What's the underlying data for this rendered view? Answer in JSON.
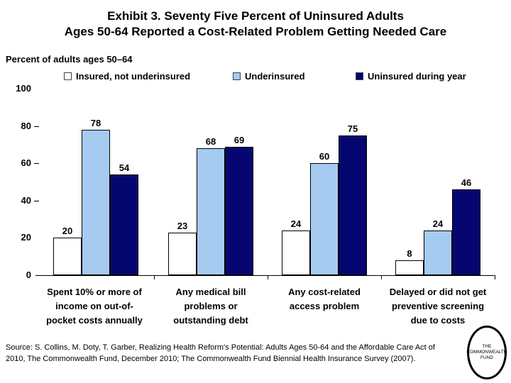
{
  "header": {
    "title_line1": "Exhibit 3. Seventy Five Percent of Uninsured Adults",
    "title_line2": "Ages 50-64 Reported a Cost-Related Problem Getting Needed Care",
    "subtitle": "Percent of adults ages 50–64"
  },
  "chart_data": {
    "type": "bar",
    "title": "Exhibit 3. Seventy Five Percent of Uninsured Adults Ages 50-64 Reported a Cost-Related Problem Getting Needed Care",
    "axis_note": "Percent of adults ages 50–64",
    "ylim": [
      0,
      100
    ],
    "yticks": [
      0,
      20,
      40,
      60,
      80,
      100
    ],
    "grid": false,
    "legend_position": "top",
    "value_labels": true,
    "categories": [
      {
        "label": "Spent 10% or more of income on out-of-pocket costs annually",
        "lines": [
          "Spent 10% or more of",
          "income on out-of-",
          "pocket costs annually"
        ]
      },
      {
        "label": "Any medical bill problems or outstanding debt",
        "lines": [
          "Any medical bill",
          "problems or",
          "outstanding debt"
        ]
      },
      {
        "label": "Any cost-related access problem",
        "lines": [
          "Any cost-related",
          "access problem"
        ]
      },
      {
        "label": "Delayed or did not get preventive screening due to costs",
        "lines": [
          "Delayed or did not get",
          "preventive screening",
          "due to costs"
        ]
      }
    ],
    "series": [
      {
        "name": "Insured, not underinsured",
        "color": "#FFFFFF",
        "values": [
          20,
          23,
          24,
          8
        ]
      },
      {
        "name": "Underinsured",
        "color": "#A6CBF0",
        "values": [
          78,
          68,
          60,
          24
        ]
      },
      {
        "name": "Uninsured during year",
        "color": "#060670",
        "values": [
          54,
          69,
          75,
          46
        ]
      }
    ]
  },
  "source": {
    "text": "Source: S. Collins, M. Doty, T. Garber, Realizing Health Reform's Potential: Adults Ages 50-64 and the Affordable Care Act of 2010, The Commonwealth Fund, December 2010; The Commonwealth Fund Biennial Health Insurance Survey (2007)."
  },
  "logo": {
    "line1": "THE",
    "line2": "COMMONWEALTH",
    "line3": "FUND"
  }
}
